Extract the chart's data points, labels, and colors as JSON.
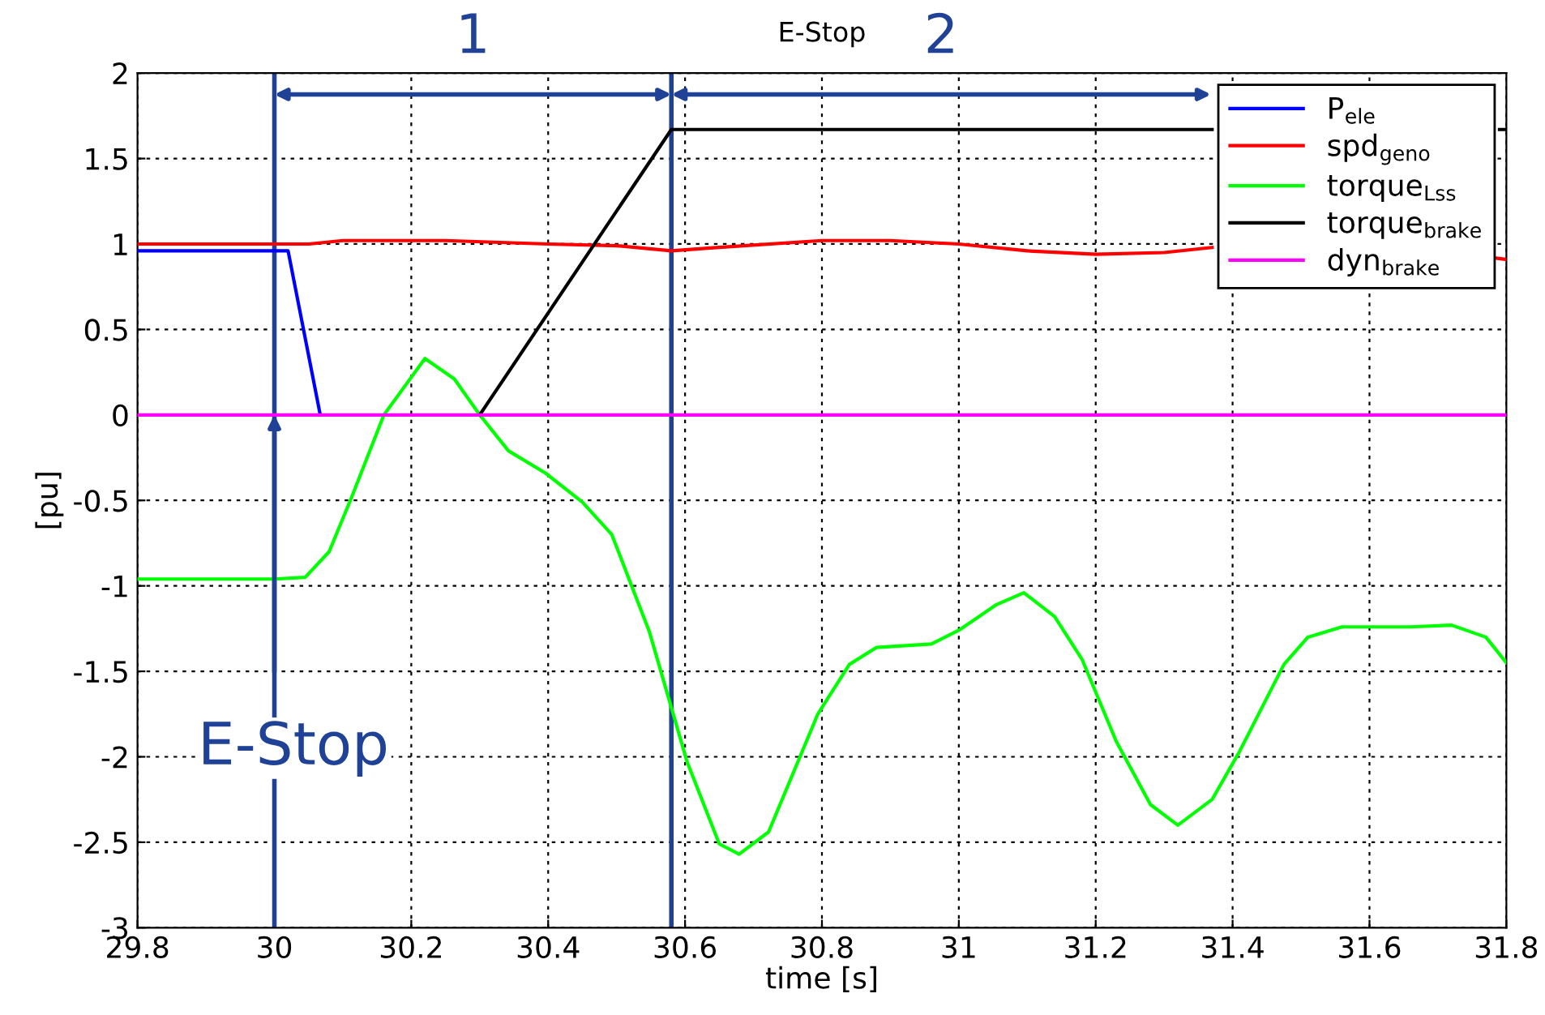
{
  "chart_data": {
    "type": "line",
    "title": "E-Stop",
    "xlabel": "time [s]",
    "ylabel": "[pu]",
    "xlim": [
      29.8,
      31.8
    ],
    "xticks": [
      29.8,
      30,
      30.2,
      30.4,
      30.6,
      30.8,
      31,
      31.2,
      31.4,
      31.6,
      31.8
    ],
    "ylim": [
      -3,
      2
    ],
    "yticks": [
      -3,
      -2.5,
      -2,
      -1.5,
      -1,
      -0.5,
      0,
      0.5,
      1,
      1.5,
      2
    ],
    "grid": true,
    "legend": "top right",
    "line_style": "solid",
    "marker": "none",
    "series": [
      {
        "name": "P$_{ele}$",
        "color": "#0000ff",
        "x": [
          29.8,
          30.02,
          30.067
        ],
        "values": [
          0.96,
          0.96,
          0
        ]
      },
      {
        "name": "spd$_{geno}$",
        "color": "#ff0000",
        "x": [
          29.8,
          30.05,
          30.1,
          30.25,
          30.4,
          30.5,
          30.58,
          30.65,
          30.8,
          30.9,
          31.0,
          31.1,
          31.2,
          31.3,
          31.37,
          31.4,
          31.78,
          31.8
        ],
        "values": [
          1.0,
          1.0,
          1.02,
          1.02,
          1.0,
          0.99,
          0.96,
          0.98,
          1.02,
          1.02,
          1.0,
          0.96,
          0.94,
          0.95,
          0.98,
          null,
          0.92,
          0.91
        ]
      },
      {
        "name": "torque$_{Lss}$",
        "color": "#00ff00",
        "x": [
          29.8,
          30.0,
          30.045,
          30.08,
          30.113,
          30.16,
          30.22,
          30.263,
          30.3,
          30.342,
          30.396,
          30.45,
          30.493,
          30.548,
          30.603,
          30.65,
          30.679,
          30.722,
          30.794,
          30.84,
          30.88,
          30.96,
          31.0,
          31.055,
          31.095,
          31.14,
          31.18,
          31.23,
          31.28,
          31.32,
          31.37,
          31.41,
          31.475,
          31.51,
          31.56,
          31.66,
          31.72,
          31.77,
          31.8
        ],
        "values": [
          -0.96,
          -0.96,
          -0.95,
          -0.8,
          -0.48,
          0,
          0.33,
          0.21,
          0,
          -0.21,
          -0.34,
          -0.51,
          -0.7,
          -1.27,
          -2.03,
          -2.51,
          -2.57,
          -2.44,
          -1.75,
          -1.46,
          -1.36,
          -1.34,
          -1.26,
          -1.11,
          -1.04,
          -1.18,
          -1.43,
          -1.91,
          -2.28,
          -2.4,
          -2.25,
          -1.97,
          -1.46,
          -1.3,
          -1.24,
          -1.24,
          -1.23,
          -1.3,
          -1.45
        ]
      },
      {
        "name": "torque$_{brake}$",
        "color": "#000000",
        "x": [
          30.3,
          30.58,
          31.37,
          31.4,
          31.79,
          31.8
        ],
        "values": [
          0,
          1.67,
          1.67,
          null,
          1.67,
          1.67
        ]
      },
      {
        "name": "dyn$_{brake}$",
        "color": "#ff00ff",
        "x": [
          29.8,
          31.8
        ],
        "values": [
          0,
          0
        ]
      }
    ],
    "ref_lines": [
      {
        "axis": "x",
        "value": 30.0,
        "color": "#1f4196"
      },
      {
        "axis": "x",
        "value": 30.58,
        "color": "#1f4196"
      }
    ],
    "annotations": [
      "1",
      "2",
      {
        "text": "E-Stop",
        "x": 30.0,
        "y": 0
      }
    ]
  }
}
